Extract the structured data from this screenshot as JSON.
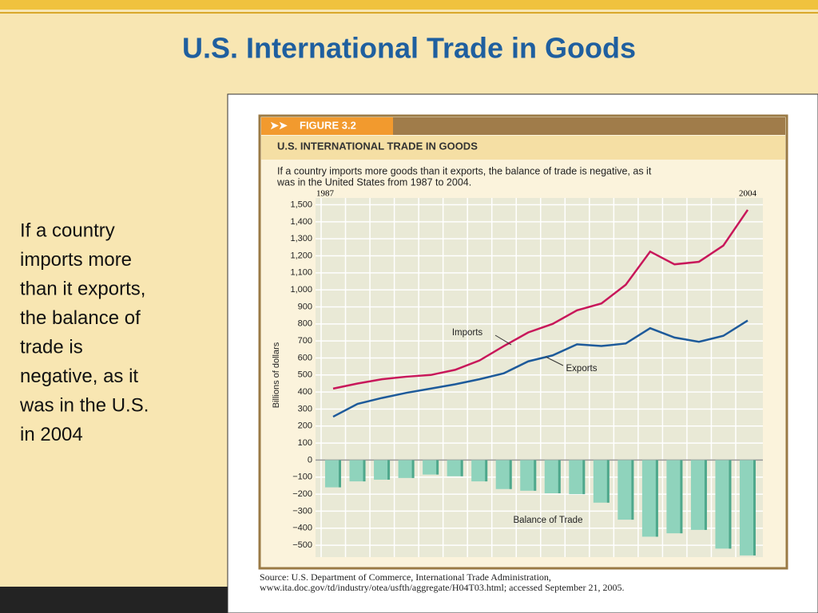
{
  "slide": {
    "title": "U.S. International Trade in Goods",
    "lines": [
      "If a country",
      "imports more",
      "than it exports,",
      "the balance of",
      "trade is",
      "negative, as it",
      "was in the U.S.",
      "in 2004"
    ]
  },
  "chart_data": {
    "type": "line",
    "figure_label": "FIGURE 3.2",
    "title": "U.S. INTERNATIONAL TRADE IN GOODS",
    "subtitle": [
      "If a country imports more goods than it exports, the balance of trade is negative, as it",
      "was in the United States from 1987 to 2004."
    ],
    "y_label": "Billions of dollars",
    "source": [
      "Source: U.S. Department of Commerce, International Trade Administration,",
      "www.ita.doc.gov/td/industry/otea/usfth/aggregate/H04T03.html; accessed September 21, 2005."
    ],
    "categories": [
      "1987",
      null,
      null,
      null,
      null,
      null,
      null,
      null,
      null,
      null,
      null,
      null,
      null,
      null,
      null,
      null,
      null,
      "2004"
    ],
    "series": [
      {
        "name": "Imports",
        "color": "#c8175a",
        "values": [
          420,
          450,
          475,
          490,
          500,
          530,
          585,
          670,
          750,
          800,
          880,
          920,
          1030,
          1225,
          1150,
          1165,
          1260,
          1470
        ]
      },
      {
        "name": "Exports",
        "color": "#1d5a9a",
        "values": [
          255,
          330,
          365,
          395,
          420,
          445,
          475,
          510,
          580,
          615,
          680,
          670,
          685,
          775,
          720,
          695,
          730,
          820
        ]
      },
      {
        "name": "Balance of Trade",
        "type": "bar",
        "color": "#8fd3bc",
        "values": [
          -160,
          -125,
          -115,
          -105,
          -85,
          -95,
          -125,
          -170,
          -180,
          -195,
          -200,
          -250,
          -350,
          -450,
          -430,
          -410,
          -520,
          -560
        ]
      }
    ],
    "ylim": [
      -570,
      1540
    ],
    "yticks": [
      {
        "value": -500,
        "label": "−500"
      },
      {
        "value": -400,
        "label": "−400"
      },
      {
        "value": -300,
        "label": "−300"
      },
      {
        "value": -200,
        "label": "−200"
      },
      {
        "value": -100,
        "label": "−100"
      },
      0,
      100,
      200,
      300,
      400,
      500,
      600,
      700,
      800,
      900,
      {
        "value": 1000,
        "label": "1,000"
      },
      {
        "value": 1100,
        "label": "1,100"
      },
      {
        "value": 1200,
        "label": "1,200"
      },
      {
        "value": 1300,
        "label": "1,300"
      },
      {
        "value": 1400,
        "label": "1,400"
      },
      {
        "value": 1500,
        "label": "1,500"
      }
    ],
    "grid": true
  }
}
